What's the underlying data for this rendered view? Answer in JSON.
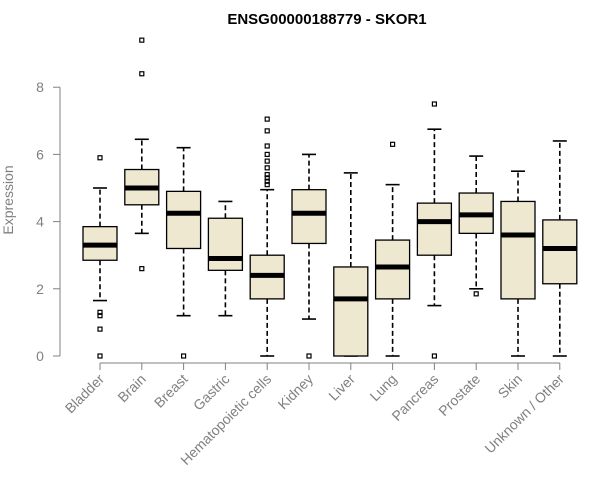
{
  "chart_data": {
    "type": "boxplot",
    "title": "ENSG00000188779 - SKOR1",
    "xlabel": "",
    "ylabel": "Expression",
    "ylim": [
      0,
      9.5
    ],
    "yticks": [
      0,
      2,
      4,
      6,
      8
    ],
    "box_fill": "#efe8d0",
    "categories": [
      "Bladder",
      "Brain",
      "Breast",
      "Gastric",
      "Hematopoietic cells",
      "Kidney",
      "Liver",
      "Lung",
      "Pancreas",
      "Prostate",
      "Skin",
      "Unknown / Other"
    ],
    "boxes": [
      {
        "label": "Bladder",
        "q1": 2.85,
        "median": 3.3,
        "q3": 3.85,
        "whisker_low": 1.65,
        "whisker_high": 5.0,
        "outliers": [
          5.9,
          1.3,
          1.2,
          0.8,
          0.0
        ]
      },
      {
        "label": "Brain",
        "q1": 4.5,
        "median": 5.0,
        "q3": 5.55,
        "whisker_low": 3.65,
        "whisker_high": 6.45,
        "outliers": [
          9.4,
          8.4,
          2.6
        ]
      },
      {
        "label": "Breast",
        "q1": 3.2,
        "median": 4.25,
        "q3": 4.9,
        "whisker_low": 1.2,
        "whisker_high": 6.2,
        "outliers": [
          0.0
        ]
      },
      {
        "label": "Gastric",
        "q1": 2.55,
        "median": 2.9,
        "q3": 4.1,
        "whisker_low": 1.2,
        "whisker_high": 4.6,
        "outliers": []
      },
      {
        "label": "Hematopoietic cells",
        "q1": 1.7,
        "median": 2.4,
        "q3": 3.0,
        "whisker_low": 0.0,
        "whisker_high": 4.95,
        "outliers": [
          7.05,
          6.7,
          6.25,
          6.0,
          5.8,
          5.6,
          5.4,
          5.3,
          5.2,
          5.1
        ]
      },
      {
        "label": "Kidney",
        "q1": 3.35,
        "median": 4.25,
        "q3": 4.95,
        "whisker_low": 1.1,
        "whisker_high": 6.0,
        "outliers": [
          0.0
        ]
      },
      {
        "label": "Liver",
        "q1": 0.0,
        "median": 1.7,
        "q3": 2.65,
        "whisker_low": 0.0,
        "whisker_high": 5.45,
        "outliers": []
      },
      {
        "label": "Lung",
        "q1": 1.7,
        "median": 2.65,
        "q3": 3.45,
        "whisker_low": 0.0,
        "whisker_high": 5.1,
        "outliers": [
          6.3
        ]
      },
      {
        "label": "Pancreas",
        "q1": 3.0,
        "median": 4.0,
        "q3": 4.55,
        "whisker_low": 1.5,
        "whisker_high": 6.75,
        "outliers": [
          7.5,
          0.0
        ]
      },
      {
        "label": "Prostate",
        "q1": 3.65,
        "median": 4.2,
        "q3": 4.85,
        "whisker_low": 2.0,
        "whisker_high": 5.95,
        "outliers": [
          1.85
        ]
      },
      {
        "label": "Skin",
        "q1": 1.7,
        "median": 3.6,
        "q3": 4.6,
        "whisker_low": 0.0,
        "whisker_high": 5.5,
        "outliers": []
      },
      {
        "label": "Unknown / Other",
        "q1": 2.15,
        "median": 3.2,
        "q3": 4.05,
        "whisker_low": 0.0,
        "whisker_high": 6.4,
        "outliers": []
      }
    ]
  }
}
